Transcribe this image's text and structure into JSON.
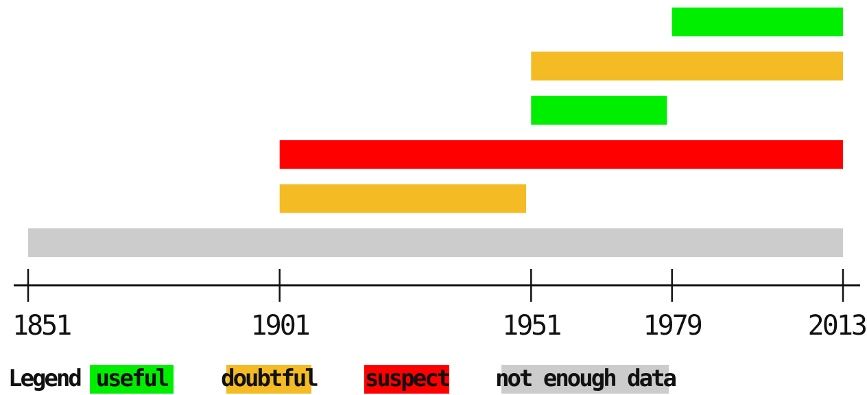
{
  "chart_data": {
    "type": "timeline",
    "xlim": [
      1851,
      2013
    ],
    "ticks": [
      "1851",
      "1901",
      "1951",
      "1979",
      "2013"
    ],
    "tick_values": [
      1851,
      1901,
      1951,
      1979,
      2013
    ],
    "bars": [
      {
        "start": 1979,
        "end": 2013,
        "status": "useful"
      },
      {
        "start": 1951,
        "end": 2013,
        "status": "doubtful"
      },
      {
        "start": 1951,
        "end": 1978,
        "status": "useful"
      },
      {
        "start": 1901,
        "end": 2013,
        "status": "suspect"
      },
      {
        "start": 1901,
        "end": 1950,
        "status": "doubtful"
      },
      {
        "start": 1851,
        "end": 2013,
        "status": "not enough data"
      }
    ],
    "legend": {
      "title": "Legend",
      "items": [
        {
          "label": "useful",
          "color": "#00ee00"
        },
        {
          "label": "doubtful",
          "color": "#f4bb25"
        },
        {
          "label": "suspect",
          "color": "#ff0000"
        },
        {
          "label": "not enough data",
          "color": "#cccccc"
        }
      ]
    },
    "colors": {
      "useful": "#00ee00",
      "doubtful": "#f4bb25",
      "suspect": "#ff0000",
      "not enough data": "#cccccc"
    }
  }
}
